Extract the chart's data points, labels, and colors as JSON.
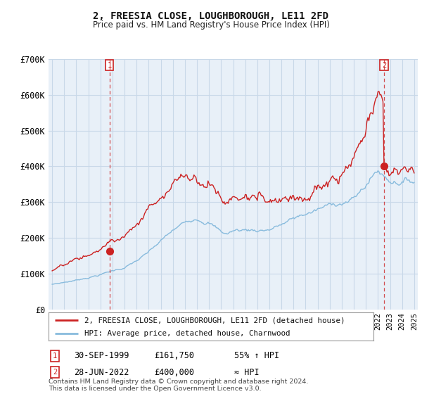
{
  "title": "2, FREESIA CLOSE, LOUGHBOROUGH, LE11 2FD",
  "subtitle": "Price paid vs. HM Land Registry's House Price Index (HPI)",
  "sale1_date_label": "30-SEP-1999",
  "sale1_price": 161750,
  "sale1_year": 1999.75,
  "sale1_label": "55% ↑ HPI",
  "sale2_date_label": "28-JUN-2022",
  "sale2_price": 400000,
  "sale2_year": 2022.5,
  "sale2_label": "≈ HPI",
  "legend_line1": "2, FREESIA CLOSE, LOUGHBOROUGH, LE11 2FD (detached house)",
  "legend_line2": "HPI: Average price, detached house, Charnwood",
  "footer": "Contains HM Land Registry data © Crown copyright and database right 2024.\nThis data is licensed under the Open Government Licence v3.0.",
  "hpi_color": "#88bbdd",
  "price_color": "#cc2222",
  "chart_bg": "#e8f0f8",
  "ylim": [
    0,
    700000
  ],
  "yticks": [
    0,
    100000,
    200000,
    300000,
    400000,
    500000,
    600000,
    700000
  ],
  "ytick_labels": [
    "£0",
    "£100K",
    "£200K",
    "£300K",
    "£400K",
    "£500K",
    "£600K",
    "£700K"
  ],
  "xlim_start": 1994.7,
  "xlim_end": 2025.3,
  "background_color": "#ffffff",
  "grid_color": "#c8d8e8"
}
